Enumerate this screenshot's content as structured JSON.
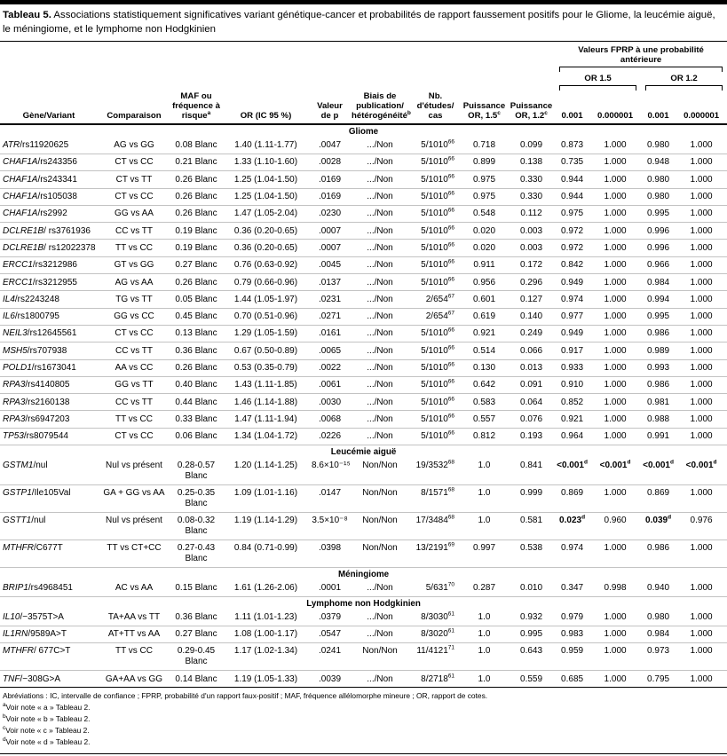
{
  "title": {
    "label": "Tableau 5.",
    "text": "Associations statistiquement significatives variant génétique-cancer et probabilités de rapport faussement positifs pour le Gliome, la leucémie aiguë, le méningiome, et le lymphome non Hodgkinien"
  },
  "header": {
    "fprp_group": "Valeurs FPRP à une probabilité antérieure",
    "or15": "OR 1.5",
    "or12": "OR 1.2",
    "cols": [
      {
        "t": "Gène/Variant"
      },
      {
        "t": "Comparaison"
      },
      {
        "t": "MAF ou fréquence à risque",
        "s": "a"
      },
      {
        "t": "OR (IC 95 %)"
      },
      {
        "t": "Valeur de p"
      },
      {
        "t": "Biais de publication/​hétérogénéité",
        "s": "b"
      },
      {
        "t": "Nb. d'études/​cas"
      },
      {
        "t": "Puissance OR, 1.5",
        "s": "c"
      },
      {
        "t": "Puissance OR, 1.2",
        "s": "c"
      },
      {
        "t": "0.001"
      },
      {
        "t": "0.000001"
      },
      {
        "t": "0.001"
      },
      {
        "t": "0.000001"
      }
    ]
  },
  "sections": [
    {
      "name": "Gliome",
      "rows": [
        {
          "g": "ATR",
          "v": "/rs11920625",
          "c": "AG vs GG",
          "m": "0.08 Blanc",
          "o": "1.40 (1.11-1.77)",
          "p": ".0047",
          "b": ".../Non",
          "n": "5/1010",
          "nr": "66",
          "p15": "0.718",
          "p12": "0.099",
          "f": [
            "0.873",
            "1.000",
            "0.980",
            "1.000"
          ]
        },
        {
          "g": "CHAF1A",
          "v": "/rs243356",
          "c": "CT vs CC",
          "m": "0.21 Blanc",
          "o": "1.33 (1.10-1.60)",
          "p": ".0028",
          "b": ".../Non",
          "n": "5/1010",
          "nr": "66",
          "p15": "0.899",
          "p12": "0.138",
          "f": [
            "0.735",
            "1.000",
            "0.948",
            "1.000"
          ]
        },
        {
          "g": "CHAF1A",
          "v": "/rs243341",
          "c": "CT vs TT",
          "m": "0.26 Blanc",
          "o": "1.25 (1.04-1.50)",
          "p": ".0169",
          "b": ".../Non",
          "n": "5/1010",
          "nr": "66",
          "p15": "0.975",
          "p12": "0.330",
          "f": [
            "0.944",
            "1.000",
            "0.980",
            "1.000"
          ]
        },
        {
          "g": "CHAF1A",
          "v": "/rs105038",
          "c": "CT vs CC",
          "m": "0.26 Blanc",
          "o": "1.25 (1.04-1.50)",
          "p": ".0169",
          "b": ".../Non",
          "n": "5/1010",
          "nr": "66",
          "p15": "0.975",
          "p12": "0.330",
          "f": [
            "0.944",
            "1.000",
            "0.980",
            "1.000"
          ]
        },
        {
          "g": "CHAF1A",
          "v": "/rs2992",
          "c": "GG vs AA",
          "m": "0.26 Blanc",
          "o": "1.47 (1.05-2.04)",
          "p": ".0230",
          "b": ".../Non",
          "n": "5/1010",
          "nr": "66",
          "p15": "0.548",
          "p12": "0.112",
          "f": [
            "0.975",
            "1.000",
            "0.995",
            "1.000"
          ]
        },
        {
          "g": "DCLRE1B",
          "v": "/ rs3761936",
          "c": "CC vs TT",
          "m": "0.19 Blanc",
          "o": "0.36 (0.20-0.65)",
          "p": ".0007",
          "b": ".../Non",
          "n": "5/1010",
          "nr": "66",
          "p15": "0.020",
          "p12": "0.003",
          "f": [
            "0.972",
            "1.000",
            "0.996",
            "1.000"
          ]
        },
        {
          "g": "DCLRE1B",
          "v": "/ rs12022378",
          "c": "TT vs CC",
          "m": "0.19 Blanc",
          "o": "0.36 (0.20-0.65)",
          "p": ".0007",
          "b": ".../Non",
          "n": "5/1010",
          "nr": "66",
          "p15": "0.020",
          "p12": "0.003",
          "f": [
            "0.972",
            "1.000",
            "0.996",
            "1.000"
          ]
        },
        {
          "g": "ERCC1",
          "v": "/rs3212986",
          "c": "GT vs GG",
          "m": "0.27 Blanc",
          "o": "0.76 (0.63-0.92)",
          "p": ".0045",
          "b": ".../Non",
          "n": "5/1010",
          "nr": "66",
          "p15": "0.911",
          "p12": "0.172",
          "f": [
            "0.842",
            "1.000",
            "0.966",
            "1.000"
          ]
        },
        {
          "g": "ERCC1",
          "v": "/rs3212955",
          "c": "AG vs AA",
          "m": "0.26 Blanc",
          "o": "0.79 (0.66-0.96)",
          "p": ".0137",
          "b": ".../Non",
          "n": "5/1010",
          "nr": "66",
          "p15": "0.956",
          "p12": "0.296",
          "f": [
            "0.949",
            "1.000",
            "0.984",
            "1.000"
          ]
        },
        {
          "g": "IL4",
          "v": "/rs2243248",
          "c": "TG vs TT",
          "m": "0.05 Blanc",
          "o": "1.44 (1.05-1.97)",
          "p": ".0231",
          "b": ".../Non",
          "n": "2/654",
          "nr": "67",
          "p15": "0.601",
          "p12": "0.127",
          "f": [
            "0.974",
            "1.000",
            "0.994",
            "1.000"
          ]
        },
        {
          "g": "IL6",
          "v": "/rs1800795",
          "c": "GG vs CC",
          "m": "0.45 Blanc",
          "o": "0.70 (0.51-0.96)",
          "p": ".0271",
          "b": ".../Non",
          "n": "2/654",
          "nr": "67",
          "p15": "0.619",
          "p12": "0.140",
          "f": [
            "0.977",
            "1.000",
            "0.995",
            "1.000"
          ]
        },
        {
          "g": "NEIL3",
          "v": "/rs12645561",
          "c": "CT vs CC",
          "m": "0.13 Blanc",
          "o": "1.29 (1.05-1.59)",
          "p": ".0161",
          "b": ".../Non",
          "n": "5/1010",
          "nr": "66",
          "p15": "0.921",
          "p12": "0.249",
          "f": [
            "0.949",
            "1.000",
            "0.986",
            "1.000"
          ]
        },
        {
          "g": "MSH5",
          "v": "/rs707938",
          "c": "CC vs TT",
          "m": "0.36 Blanc",
          "o": "0.67 (0.50-0.89)",
          "p": ".0065",
          "b": ".../Non",
          "n": "5/1010",
          "nr": "66",
          "p15": "0.514",
          "p12": "0.066",
          "f": [
            "0.917",
            "1.000",
            "0.989",
            "1.000"
          ]
        },
        {
          "g": "POLD1",
          "v": "/rs1673041",
          "c": "AA vs CC",
          "m": "0.26 Blanc",
          "o": "0.53 (0.35-0.79)",
          "p": ".0022",
          "b": ".../Non",
          "n": "5/1010",
          "nr": "66",
          "p15": "0.130",
          "p12": "0.013",
          "f": [
            "0.933",
            "1.000",
            "0.993",
            "1.000"
          ]
        },
        {
          "g": "RPA3",
          "v": "/rs4140805",
          "c": "GG vs TT",
          "m": "0.40 Blanc",
          "o": "1.43 (1.11-1.85)",
          "p": ".0061",
          "b": ".../Non",
          "n": "5/1010",
          "nr": "66",
          "p15": "0.642",
          "p12": "0.091",
          "f": [
            "0.910",
            "1.000",
            "0.986",
            "1.000"
          ]
        },
        {
          "g": "RPA3",
          "v": "/rs2160138",
          "c": "CC vs TT",
          "m": "0.44 Blanc",
          "o": "1.46 (1.14-1.88)",
          "p": ".0030",
          "b": ".../Non",
          "n": "5/1010",
          "nr": "66",
          "p15": "0.583",
          "p12": "0.064",
          "f": [
            "0.852",
            "1.000",
            "0.981",
            "1.000"
          ]
        },
        {
          "g": "RPA3",
          "v": "/rs6947203",
          "c": "TT vs CC",
          "m": "0.33 Blanc",
          "o": "1.47 (1.11-1.94)",
          "p": ".0068",
          "b": ".../Non",
          "n": "5/1010",
          "nr": "66",
          "p15": "0.557",
          "p12": "0.076",
          "f": [
            "0.921",
            "1.000",
            "0.988",
            "1.000"
          ]
        },
        {
          "g": "TP53",
          "v": "/rs8079544",
          "c": "CT vs CC",
          "m": "0.06 Blanc",
          "o": "1.34 (1.04-1.72)",
          "p": ".0226",
          "b": ".../Non",
          "n": "5/1010",
          "nr": "66",
          "p15": "0.812",
          "p12": "0.193",
          "f": [
            "0.964",
            "1.000",
            "0.991",
            "1.000"
          ]
        }
      ]
    },
    {
      "name": "Leucémie aiguë",
      "rows": [
        {
          "g": "GSTM1",
          "v": "/nul",
          "c": "Nul vs présent",
          "m": "0.28-0.57 Blanc",
          "o": "1.20 (1.14-1.25)",
          "p": "8.6×10⁻¹⁵",
          "b": "Non/Non",
          "n": "19/3532",
          "nr": "68",
          "p15": "1.0",
          "p12": "0.841",
          "f": [
            "<0.001",
            "<0.001",
            "<0.001",
            "<0.001"
          ],
          "fb": [
            1,
            1,
            1,
            1
          ]
        },
        {
          "g": "GSTP1",
          "v": "/Ile105Val",
          "c": "GA + GG vs AA",
          "m": "0.25-0.35 Blanc",
          "o": "1.09 (1.01-1.16)",
          "p": ".0147",
          "b": "Non/Non",
          "n": "8/1571",
          "nr": "68",
          "p15": "1.0",
          "p12": "0.999",
          "f": [
            "0.869",
            "1.000",
            "0.869",
            "1.000"
          ]
        },
        {
          "g": "GSTT1",
          "v": "/nul",
          "c": "Nul vs présent",
          "m": "0.08-0.32 Blanc",
          "o": "1.19 (1.14-1.29)",
          "p": "3.5×10⁻⁸",
          "b": "Non/Non",
          "n": "17/3484",
          "nr": "68",
          "p15": "1.0",
          "p12": "0.581",
          "f": [
            "0.023",
            "0.960",
            "0.039",
            "0.976"
          ],
          "fb": [
            1,
            0,
            1,
            0
          ]
        },
        {
          "g": "MTHFR",
          "v": "/C677T",
          "c": "TT vs CT+CC",
          "m": "0.27-0.43 Blanc",
          "o": "0.84 (0.71-0.99)",
          "p": ".0398",
          "b": "Non/Non",
          "n": "13/2191",
          "nr": "69",
          "p15": "0.997",
          "p12": "0.538",
          "f": [
            "0.974",
            "1.000",
            "0.986",
            "1.000"
          ]
        }
      ]
    },
    {
      "name": "Méningiome",
      "rows": [
        {
          "g": "BRIP1",
          "v": "/rs4968451",
          "c": "AC vs AA",
          "m": "0.15 Blanc",
          "o": "1.61 (1.26-2.06)",
          "p": ".0001",
          "b": ".../Non",
          "n": "5/631",
          "nr": "70",
          "p15": "0.287",
          "p12": "0.010",
          "f": [
            "0.347",
            "0.998",
            "0.940",
            "1.000"
          ]
        }
      ]
    },
    {
      "name": "Lymphome non Hodgkinien",
      "rows": [
        {
          "g": "IL10",
          "v": "/−3575T>A",
          "c": "TA+AA vs TT",
          "m": "0.36 Blanc",
          "o": "1.11 (1.01-1.23)",
          "p": ".0379",
          "b": ".../Non",
          "n": "8/3030",
          "nr": "61",
          "p15": "1.0",
          "p12": "0.932",
          "f": [
            "0.979",
            "1.000",
            "0.980",
            "1.000"
          ]
        },
        {
          "g": "IL1RN",
          "v": "/9589A>T",
          "c": "AT+TT vs AA",
          "m": "0.27 Blanc",
          "o": "1.08 (1.00-1.17)",
          "p": ".0547",
          "b": ".../Non",
          "n": "8/3020",
          "nr": "61",
          "p15": "1.0",
          "p12": "0.995",
          "f": [
            "0.983",
            "1.000",
            "0.984",
            "1.000"
          ]
        },
        {
          "g": "MTHFR",
          "v": "/ 677C>T",
          "c": "TT vs CC",
          "m": "0.29-0.45 Blanc",
          "o": "1.17 (1.02-1.34)",
          "p": ".0241",
          "b": "Non/Non",
          "n": "11/4121",
          "nr": "71",
          "p15": "1.0",
          "p12": "0.643",
          "f": [
            "0.959",
            "1.000",
            "0.973",
            "1.000"
          ]
        },
        {
          "g": "TNF",
          "v": "/−308G>A",
          "c": "GA+AA vs GG",
          "m": "0.14 Blanc",
          "o": "1.19 (1.05-1.33)",
          "p": ".0039",
          "b": ".../Non",
          "n": "8/2718",
          "nr": "61",
          "p15": "1.0",
          "p12": "0.559",
          "f": [
            "0.685",
            "1.000",
            "0.795",
            "1.000"
          ]
        }
      ]
    }
  ],
  "footnotes": {
    "abbrev": "Abréviations : IC, intervalle de confiance ; FPRP, probabilité d'un rapport faux-positif ; MAF, fréquence allélomorphe mineure ; OR, rapport de cotes.",
    "notes": [
      {
        "s": "a",
        "t": "Voir note « a » Tableau 2."
      },
      {
        "s": "b",
        "t": "Voir note « b » Tableau 2."
      },
      {
        "s": "c",
        "t": "Voir note « c » Tableau 2."
      },
      {
        "s": "d",
        "t": "Voir note « d » Tableau 2."
      }
    ]
  }
}
